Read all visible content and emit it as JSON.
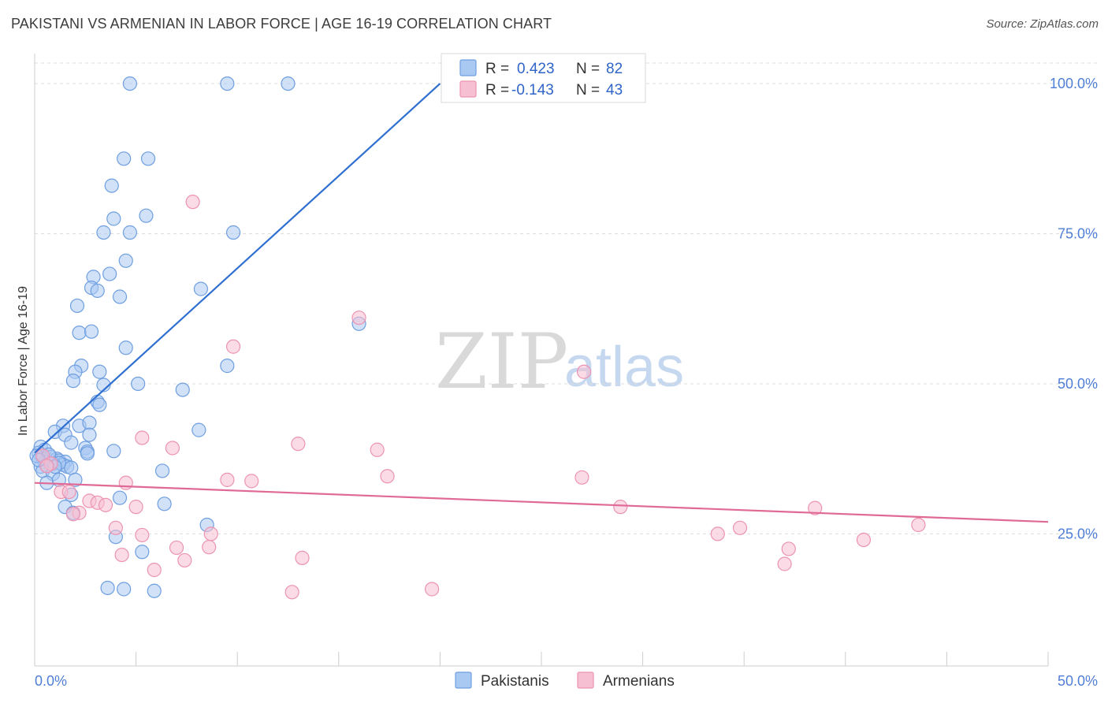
{
  "title": "PAKISTANI VS ARMENIAN IN LABOR FORCE | AGE 16-19 CORRELATION CHART",
  "source": "Source: ZipAtlas.com",
  "watermark": {
    "zip": "ZIP",
    "atlas": "atlas"
  },
  "legend": {
    "r_label": "R =",
    "n_label": "N =",
    "rows": [
      {
        "r": "0.423",
        "n": "82"
      },
      {
        "r": "-0.143",
        "n": "43"
      }
    ]
  },
  "colors": {
    "pakistanis_fill": "#a9c8f2",
    "pakistanis_stroke": "#6f9fe0",
    "pakistanis_line": "#2f6fd0",
    "armenians_fill": "#f7c0d2",
    "armenians_stroke": "#ec93b1",
    "armenians_line": "#e06a96",
    "tick_text": "#4f7ed6"
  },
  "chart_data": {
    "type": "scatter",
    "ylabel": "In Labor Force | Age 16-19",
    "xlim": [
      0,
      50
    ],
    "ylim": [
      3,
      105
    ],
    "x_tick_labels": [
      "0.0%",
      "50.0%"
    ],
    "y_ticks": [
      {
        "value": 100,
        "label": "100.0%"
      },
      {
        "value": 75,
        "label": "75.0%"
      },
      {
        "value": 50,
        "label": "50.0%"
      },
      {
        "value": 25,
        "label": "25.0%"
      }
    ],
    "grid": "horizontal dashed",
    "legend_placement": "top-center",
    "series": [
      {
        "name": "Pakistanis",
        "r": 0.423,
        "n": 82,
        "trend": {
          "x": [
            0,
            20
          ],
          "y": [
            38.5,
            100
          ]
        },
        "points": [
          [
            4.7,
            100
          ],
          [
            9.5,
            100
          ],
          [
            12.5,
            100
          ],
          [
            4.4,
            87.5
          ],
          [
            5.6,
            87.5
          ],
          [
            3.8,
            83
          ],
          [
            3.9,
            77.5
          ],
          [
            5.5,
            78
          ],
          [
            3.4,
            75.2
          ],
          [
            4.7,
            75.2
          ],
          [
            9.8,
            75.2
          ],
          [
            4.5,
            70.5
          ],
          [
            2.9,
            67.8
          ],
          [
            3.7,
            68.3
          ],
          [
            2.8,
            66
          ],
          [
            3.1,
            65.5
          ],
          [
            8.2,
            65.8
          ],
          [
            4.2,
            64.5
          ],
          [
            2.1,
            63
          ],
          [
            2.2,
            58.5
          ],
          [
            2.8,
            58.7
          ],
          [
            16,
            60
          ],
          [
            4.5,
            56
          ],
          [
            2.3,
            53
          ],
          [
            2.0,
            52
          ],
          [
            3.2,
            52
          ],
          [
            9.5,
            53
          ],
          [
            1.9,
            50.5
          ],
          [
            3.4,
            49.8
          ],
          [
            5.1,
            50
          ],
          [
            7.3,
            49
          ],
          [
            3.1,
            47
          ],
          [
            3.2,
            46.5
          ],
          [
            1.4,
            43
          ],
          [
            2.2,
            43
          ],
          [
            2.7,
            43.5
          ],
          [
            1.0,
            42
          ],
          [
            1.5,
            41.5
          ],
          [
            2.7,
            41.5
          ],
          [
            8.1,
            42.3
          ],
          [
            1.8,
            40.2
          ],
          [
            0.3,
            39.5
          ],
          [
            0.5,
            39
          ],
          [
            2.5,
            39.3
          ],
          [
            2.6,
            38.7
          ],
          [
            3.9,
            38.8
          ],
          [
            2.6,
            38.4
          ],
          [
            0.2,
            38.5
          ],
          [
            0.8,
            37.8
          ],
          [
            1.1,
            37.5
          ],
          [
            1.2,
            37.2
          ],
          [
            0.4,
            37.5
          ],
          [
            0.5,
            37
          ],
          [
            1.5,
            37
          ],
          [
            0.9,
            36.7
          ],
          [
            1.4,
            36.5
          ],
          [
            1.6,
            36.2
          ],
          [
            1.8,
            36
          ],
          [
            0.3,
            36.2
          ],
          [
            0.6,
            36.4
          ],
          [
            1.2,
            36.8
          ],
          [
            0.4,
            35.5
          ],
          [
            0.9,
            35
          ],
          [
            6.3,
            35.5
          ],
          [
            0.6,
            33.5
          ],
          [
            1.2,
            34
          ],
          [
            2.0,
            34
          ],
          [
            4.2,
            31
          ],
          [
            1.8,
            31.5
          ],
          [
            1.5,
            29.5
          ],
          [
            6.4,
            30
          ],
          [
            1.9,
            28.5
          ],
          [
            8.5,
            26.5
          ],
          [
            4.0,
            24.5
          ],
          [
            5.3,
            22
          ],
          [
            3.6,
            16
          ],
          [
            4.4,
            15.8
          ],
          [
            5.9,
            15.5
          ],
          [
            0.1,
            38
          ],
          [
            0.7,
            38.2
          ],
          [
            1.0,
            36.2
          ],
          [
            0.2,
            37.3
          ]
        ]
      },
      {
        "name": "Armenians",
        "r": -0.143,
        "n": 43,
        "trend": {
          "x": [
            0,
            50
          ],
          "y": [
            33.5,
            27
          ]
        },
        "points": [
          [
            7.8,
            80.3
          ],
          [
            16,
            61
          ],
          [
            9.8,
            56.2
          ],
          [
            27.1,
            52
          ],
          [
            5.3,
            41
          ],
          [
            13,
            40
          ],
          [
            6.8,
            39.3
          ],
          [
            16.9,
            39
          ],
          [
            0.4,
            38
          ],
          [
            0.8,
            36.7
          ],
          [
            17.4,
            34.6
          ],
          [
            27,
            34.4
          ],
          [
            9.5,
            34
          ],
          [
            10.7,
            33.8
          ],
          [
            4.5,
            33.5
          ],
          [
            1.3,
            32
          ],
          [
            1.7,
            32
          ],
          [
            2.7,
            30.5
          ],
          [
            3.1,
            30.2
          ],
          [
            3.5,
            29.8
          ],
          [
            5.0,
            29.5
          ],
          [
            28.9,
            29.5
          ],
          [
            38.5,
            29.3
          ],
          [
            2.2,
            28.5
          ],
          [
            1.9,
            28.3
          ],
          [
            4.0,
            26
          ],
          [
            34.8,
            26
          ],
          [
            8.7,
            25
          ],
          [
            5.3,
            24.8
          ],
          [
            33.7,
            25
          ],
          [
            7.0,
            22.7
          ],
          [
            8.6,
            22.8
          ],
          [
            37.2,
            22.5
          ],
          [
            40.9,
            24
          ],
          [
            43.6,
            26.5
          ],
          [
            4.3,
            21.5
          ],
          [
            7.4,
            20.6
          ],
          [
            13.2,
            21
          ],
          [
            37,
            20
          ],
          [
            5.9,
            19
          ],
          [
            19.6,
            15.8
          ],
          [
            12.7,
            15.3
          ],
          [
            0.6,
            36.3
          ]
        ]
      }
    ]
  }
}
